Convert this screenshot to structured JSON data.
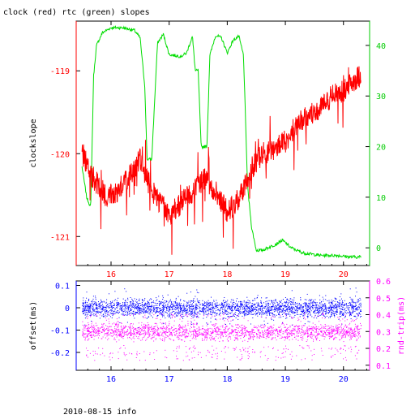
{
  "page": {
    "title": "clock (red) rtc (green) slopes",
    "footer": "2010-08-15 info"
  },
  "chart_data": [
    {
      "type": "line",
      "title": "clock (red) rtc (green) slopes",
      "xlabel": "",
      "ylabel": "clockslope",
      "x_ticks": [
        16,
        17,
        18,
        19,
        20
      ],
      "xlim": [
        15.4,
        20.45
      ],
      "y_left": {
        "label": "clockslope",
        "lim": [
          -121.35,
          -118.4
        ],
        "ticks": [
          -119,
          -120,
          -121
        ],
        "color": "#ff0000"
      },
      "y_right": {
        "label": "",
        "lim": [
          -3.5,
          44.8
        ],
        "ticks": [
          0,
          10,
          20,
          30,
          40
        ],
        "color": "#00cc00"
      },
      "series": [
        {
          "name": "clock",
          "axis": "left",
          "color": "#ff0000",
          "points": [
            [
              15.5,
              -120.0
            ],
            [
              15.7,
              -120.3
            ],
            [
              15.9,
              -120.5
            ],
            [
              16.1,
              -120.45
            ],
            [
              16.3,
              -120.3
            ],
            [
              16.5,
              -120.05
            ],
            [
              16.6,
              -120.3
            ],
            [
              16.8,
              -120.55
            ],
            [
              17.0,
              -120.75
            ],
            [
              17.2,
              -120.6
            ],
            [
              17.4,
              -120.45
            ],
            [
              17.6,
              -120.3
            ],
            [
              17.8,
              -120.45
            ],
            [
              18.0,
              -120.7
            ],
            [
              18.2,
              -120.55
            ],
            [
              18.4,
              -120.2
            ],
            [
              18.6,
              -120.0
            ],
            [
              18.8,
              -119.95
            ],
            [
              19.0,
              -119.85
            ],
            [
              19.2,
              -119.65
            ],
            [
              19.4,
              -119.55
            ],
            [
              19.6,
              -119.45
            ],
            [
              19.8,
              -119.3
            ],
            [
              20.0,
              -119.25
            ],
            [
              20.2,
              -119.1
            ],
            [
              20.3,
              -119.05
            ]
          ]
        },
        {
          "name": "rtc",
          "axis": "right",
          "color": "#00dd00",
          "points": [
            [
              15.5,
              16
            ],
            [
              15.58,
              10
            ],
            [
              15.65,
              8
            ],
            [
              15.7,
              34
            ],
            [
              15.75,
              40
            ],
            [
              15.85,
              42.5
            ],
            [
              16.0,
              43.5
            ],
            [
              16.2,
              43.5
            ],
            [
              16.4,
              43.0
            ],
            [
              16.5,
              41.5
            ],
            [
              16.58,
              32
            ],
            [
              16.62,
              17.5
            ],
            [
              16.7,
              17.5
            ],
            [
              16.8,
              40.5
            ],
            [
              16.9,
              42.2
            ],
            [
              17.0,
              38.2
            ],
            [
              17.2,
              37.8
            ],
            [
              17.3,
              38.5
            ],
            [
              17.4,
              41.8
            ],
            [
              17.45,
              35
            ],
            [
              17.5,
              35
            ],
            [
              17.55,
              20
            ],
            [
              17.65,
              20
            ],
            [
              17.7,
              38
            ],
            [
              17.8,
              42
            ],
            [
              17.9,
              41.5
            ],
            [
              18.0,
              38.5
            ],
            [
              18.1,
              41
            ],
            [
              18.2,
              41.8
            ],
            [
              18.28,
              38
            ],
            [
              18.35,
              12
            ],
            [
              18.42,
              4
            ],
            [
              18.5,
              -0.5
            ],
            [
              18.6,
              -0.5
            ],
            [
              18.8,
              0.5
            ],
            [
              18.95,
              1.5
            ],
            [
              19.1,
              0
            ],
            [
              19.3,
              -1
            ],
            [
              19.6,
              -1.5
            ],
            [
              19.9,
              -1.5
            ],
            [
              20.1,
              -1.8
            ],
            [
              20.3,
              -1.8
            ]
          ]
        }
      ]
    },
    {
      "type": "scatter",
      "xlim": [
        15.4,
        20.45
      ],
      "x_ticks": [
        16,
        17,
        18,
        19,
        20
      ],
      "y_left": {
        "label": "offset(ms)",
        "lim": [
          -0.28,
          0.12
        ],
        "ticks": [
          0.1,
          0,
          -0.1,
          -0.2
        ],
        "color": "#0000ff"
      },
      "y_right": {
        "label": "rnd-trip(ms)",
        "lim": [
          0.07,
          0.6
        ],
        "ticks": [
          0.6,
          0.5,
          0.4,
          0.3,
          0.2,
          0.1
        ],
        "color": "#ff00ff"
      },
      "series": [
        {
          "name": "offset",
          "axis": "left",
          "color": "#0000ff",
          "x_range": [
            15.5,
            20.3
          ],
          "center": 0.0,
          "band": [
            -0.06,
            0.06
          ]
        },
        {
          "name": "rnd-trip",
          "axis": "right",
          "color": "#ff00ff",
          "x_range": [
            15.5,
            20.3
          ],
          "center": 0.3,
          "band": [
            0.26,
            0.36
          ],
          "outliers": [
            0.13,
            0.22
          ]
        }
      ]
    }
  ],
  "colors": {
    "axis": "#000000",
    "left_top": "#ff0000",
    "right_top": "#00cc00",
    "left_bottom": "#0000ff",
    "right_bottom": "#ff00ff"
  }
}
